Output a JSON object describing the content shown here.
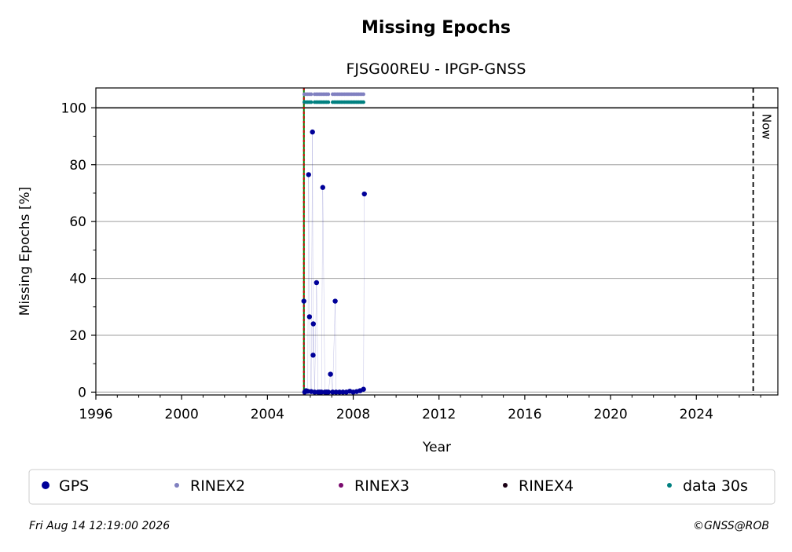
{
  "chart_data": {
    "type": "scatter",
    "title": "Missing Epochs",
    "subtitle": "FJSG00REU - IPGP-GNSS",
    "x_label": "Year",
    "y_label": "Missing Epochs [%]",
    "xlim": [
      1996,
      2027.8
    ],
    "ylim": [
      -1,
      107
    ],
    "xticks": [
      1996,
      2000,
      2004,
      2008,
      2012,
      2016,
      2020,
      2024
    ],
    "yticks": [
      0,
      20,
      40,
      60,
      80,
      100
    ],
    "xminorticks": [
      1997,
      1998,
      1999,
      2001,
      2002,
      2003,
      2005,
      2006,
      2007,
      2009,
      2010,
      2011,
      2013,
      2014,
      2015,
      2017,
      2018,
      2019,
      2021,
      2022,
      2023,
      2025,
      2026,
      2027
    ],
    "yminorticks": [
      10,
      30,
      50,
      70,
      90
    ],
    "grid": true,
    "hline": 100,
    "start_line": 2005.7,
    "now_line": 2026.65,
    "now_label": "Now",
    "series": [
      {
        "name": "GPS",
        "color": "#000099",
        "x": [
          2005.7,
          2005.74,
          2005.8,
          2005.88,
          2005.92,
          2005.96,
          2006.04,
          2006.1,
          2006.13,
          2006.14,
          2006.2,
          2006.29,
          2006.36,
          2006.44,
          2006.52,
          2006.58,
          2006.68,
          2006.76,
          2006.84,
          2006.94,
          2007.04,
          2007.16,
          2007.2,
          2007.36,
          2007.52,
          2007.68,
          2007.84,
          2008.0,
          2008.16,
          2008.32,
          2008.48,
          2008.52
        ],
        "values": [
          32,
          0,
          0.5,
          0.3,
          76.5,
          26.5,
          0.2,
          91.5,
          13,
          24,
          0,
          38.5,
          0,
          0,
          0,
          72,
          0,
          0,
          0,
          6.3,
          0,
          32,
          0,
          0,
          0,
          0,
          0.3,
          0,
          0.2,
          0.5,
          1,
          69.7
        ]
      },
      {
        "name": "RINEX2",
        "color": "#8080c0",
        "x": [
          2005.72,
          2005.8,
          2005.88,
          2005.96,
          2006.04,
          2006.2,
          2006.28,
          2006.36,
          2006.44,
          2006.52,
          2006.6,
          2006.68,
          2006.76,
          2006.84,
          2007.04,
          2007.12,
          2007.2,
          2007.28,
          2007.36,
          2007.44,
          2007.52,
          2007.6,
          2007.68,
          2007.76,
          2007.84,
          2007.92,
          2008.0,
          2008.08,
          2008.16,
          2008.24,
          2008.32,
          2008.4,
          2008.48
        ],
        "values": [
          104.8,
          104.8,
          104.8,
          104.8,
          104.8,
          104.8,
          104.8,
          104.8,
          104.8,
          104.8,
          104.8,
          104.8,
          104.8,
          104.8,
          104.8,
          104.8,
          104.8,
          104.8,
          104.8,
          104.8,
          104.8,
          104.8,
          104.8,
          104.8,
          104.8,
          104.8,
          104.8,
          104.8,
          104.8,
          104.8,
          104.8,
          104.8,
          104.8
        ]
      },
      {
        "name": "RINEX3",
        "color": "#7a0a6e",
        "x": [],
        "values": []
      },
      {
        "name": "RINEX4",
        "color": "#1a0014",
        "x": [],
        "values": []
      },
      {
        "name": "data 30s",
        "color": "#008080",
        "x": [
          2005.72,
          2005.8,
          2005.88,
          2005.96,
          2006.04,
          2006.2,
          2006.28,
          2006.36,
          2006.44,
          2006.52,
          2006.6,
          2006.68,
          2006.76,
          2006.84,
          2007.04,
          2007.12,
          2007.2,
          2007.28,
          2007.36,
          2007.44,
          2007.52,
          2007.6,
          2007.68,
          2007.76,
          2007.84,
          2007.92,
          2008.0,
          2008.08,
          2008.16,
          2008.24,
          2008.32,
          2008.4,
          2008.48
        ],
        "values": [
          102,
          102,
          102,
          102,
          102,
          102,
          102,
          102,
          102,
          102,
          102,
          102,
          102,
          102,
          102,
          102,
          102,
          102,
          102,
          102,
          102,
          102,
          102,
          102,
          102,
          102,
          102,
          102,
          102,
          102,
          102,
          102,
          102
        ]
      }
    ],
    "footer_left": "Fri Aug 14 12:19:00 2026",
    "footer_right": "©GNSS@ROB"
  }
}
